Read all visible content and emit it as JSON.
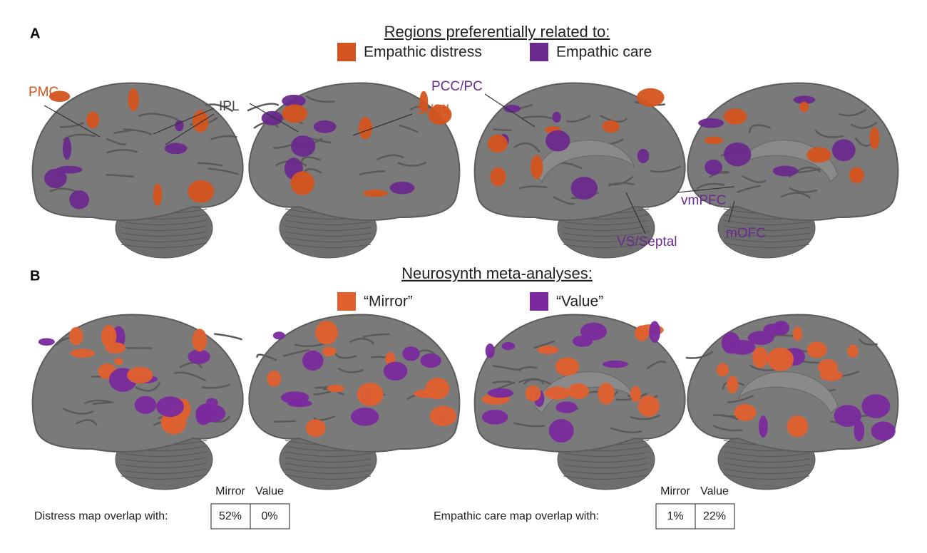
{
  "panel_a": {
    "label": "A",
    "title": "Regions preferentially related to:",
    "legend": [
      {
        "name": "Empathic distress",
        "color": "#d4541f"
      },
      {
        "name": "Empathic care",
        "color": "#6b2a8e"
      }
    ],
    "region_labels": [
      {
        "text": "PMC",
        "color": "#d4541f"
      },
      {
        "text": "IPL",
        "color": "#444444"
      },
      {
        "text": "SI/SII",
        "color": "#d4541f"
      },
      {
        "text": "PCC/PC",
        "color": "#6b2a8e"
      },
      {
        "text": "vmPFC",
        "color": "#6b2a8e"
      },
      {
        "text": "mOFC",
        "color": "#6b2a8e"
      },
      {
        "text": "VS/Septal",
        "color": "#6b2a8e"
      }
    ]
  },
  "panel_b": {
    "label": "B",
    "title": "Neurosynth meta-analyses:",
    "legend": [
      {
        "name": "“Mirror”",
        "color": "#e0602e"
      },
      {
        "name": "“Value”",
        "color": "#7a2a9e"
      }
    ],
    "tables": [
      {
        "caption": "Distress map overlap with:",
        "columns": [
          "Mirror",
          "Value"
        ],
        "values": [
          "52%",
          "0%"
        ]
      },
      {
        "caption": "Empathic care map overlap with:",
        "columns": [
          "Mirror",
          "Value"
        ],
        "values": [
          "1%",
          "22%"
        ]
      }
    ]
  }
}
